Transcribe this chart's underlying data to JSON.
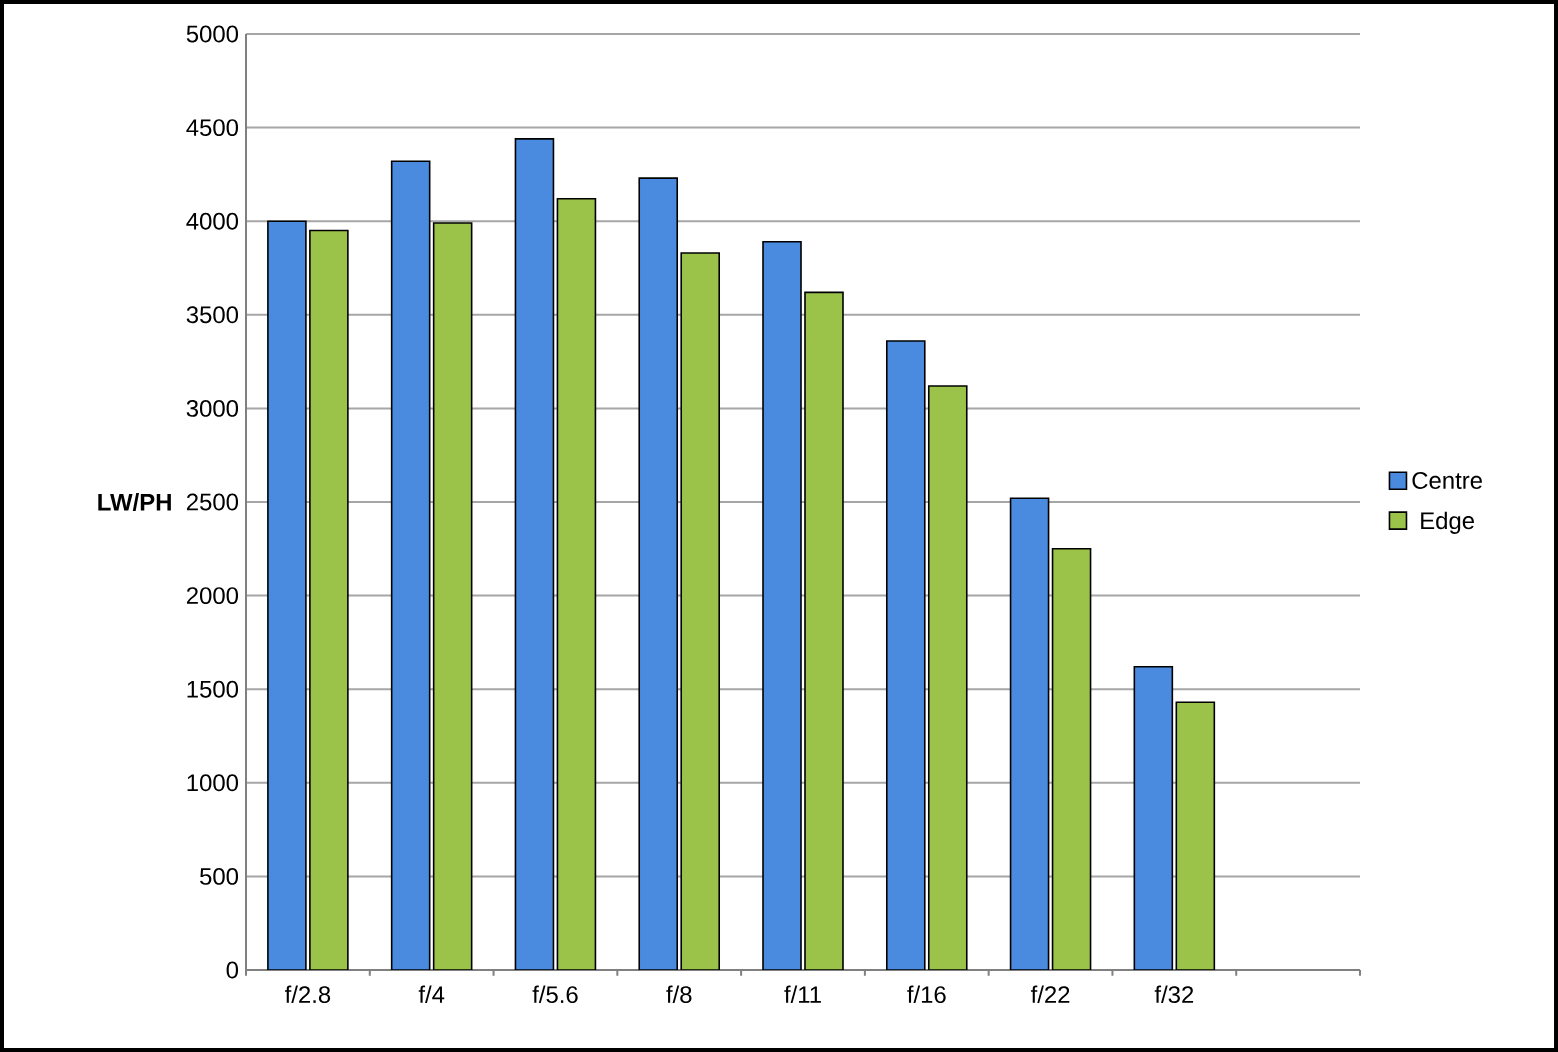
{
  "chart_data": {
    "type": "bar",
    "ylabel": "LW/PH",
    "categories": [
      "f/2.8",
      "f/4",
      "f/5.6",
      "f/8",
      "f/11",
      "f/16",
      "f/22",
      "f/32"
    ],
    "series": [
      {
        "name": "Centre",
        "color": "#4a8be0",
        "values": [
          4000,
          4320,
          4440,
          4230,
          3890,
          3360,
          2520,
          1620
        ]
      },
      {
        "name": "Edge",
        "color": "#9bc34a",
        "values": [
          3950,
          3990,
          4120,
          3830,
          3620,
          3120,
          2250,
          1430
        ]
      }
    ],
    "ylim": [
      0,
      5000
    ],
    "yticks": [
      0,
      500,
      1000,
      1500,
      2000,
      2500,
      3000,
      3500,
      4000,
      4500,
      5000
    ],
    "grid": "y",
    "legend": "right"
  }
}
